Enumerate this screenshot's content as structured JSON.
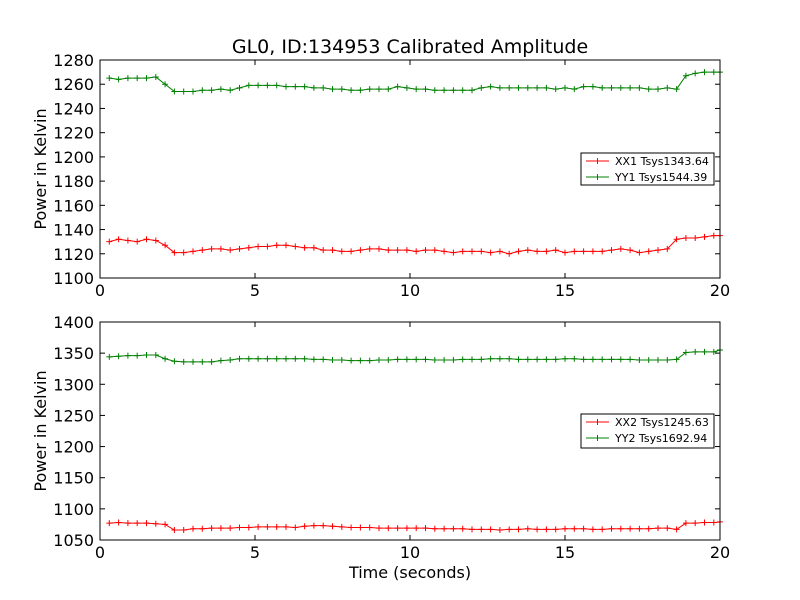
{
  "chart_data": [
    {
      "type": "line",
      "title": "GL0, ID:134953 Calibrated Amplitude",
      "xlabel": "",
      "ylabel": "Power in Kelvin",
      "xlim": [
        0,
        20
      ],
      "ylim": [
        1100,
        1280
      ],
      "x_ticks": [
        "0",
        "5",
        "10",
        "15",
        "20"
      ],
      "y_ticks": [
        "1100",
        "1120",
        "1140",
        "1160",
        "1180",
        "1200",
        "1220",
        "1240",
        "1260",
        "1280"
      ],
      "legend_position": "center-right",
      "grid": false,
      "series": [
        {
          "name": "XX1 Tsys1343.64",
          "color": "#ff0000",
          "x": [
            0.3,
            0.6,
            0.9,
            1.2,
            1.5,
            1.8,
            2.1,
            2.4,
            2.7,
            3.0,
            3.3,
            3.6,
            3.9,
            4.2,
            4.5,
            4.8,
            5.1,
            5.4,
            5.7,
            6.0,
            6.3,
            6.6,
            6.9,
            7.2,
            7.5,
            7.8,
            8.1,
            8.4,
            8.7,
            9.0,
            9.3,
            9.6,
            9.9,
            10.2,
            10.5,
            10.8,
            11.1,
            11.4,
            11.7,
            12.0,
            12.3,
            12.6,
            12.9,
            13.2,
            13.5,
            13.8,
            14.1,
            14.4,
            14.7,
            15.0,
            15.3,
            15.6,
            15.9,
            16.2,
            16.5,
            16.8,
            17.1,
            17.4,
            17.7,
            18.0,
            18.3,
            18.6,
            18.9,
            19.2,
            19.5,
            19.8
          ],
          "values": [
            1130,
            1132,
            1131,
            1130,
            1132,
            1131,
            1127,
            1121,
            1121,
            1122,
            1123,
            1124,
            1124,
            1123,
            1124,
            1125,
            1126,
            1126,
            1127,
            1127,
            1126,
            1125,
            1125,
            1123,
            1123,
            1122,
            1122,
            1123,
            1124,
            1124,
            1123,
            1123,
            1123,
            1122,
            1123,
            1123,
            1122,
            1121,
            1122,
            1122,
            1122,
            1121,
            1122,
            1120,
            1122,
            1123,
            1122,
            1122,
            1123,
            1121,
            1122,
            1122,
            1122,
            1122,
            1123,
            1124,
            1123,
            1121,
            1122,
            1123,
            1124,
            1132,
            1133,
            1133,
            1134,
            1135
          ],
          "final_point": [
            20.0,
            1135
          ]
        },
        {
          "name": "YY1 Tsys1544.39",
          "color": "#008000",
          "x": [
            0.3,
            0.6,
            0.9,
            1.2,
            1.5,
            1.8,
            2.1,
            2.4,
            2.7,
            3.0,
            3.3,
            3.6,
            3.9,
            4.2,
            4.5,
            4.8,
            5.1,
            5.4,
            5.7,
            6.0,
            6.3,
            6.6,
            6.9,
            7.2,
            7.5,
            7.8,
            8.1,
            8.4,
            8.7,
            9.0,
            9.3,
            9.6,
            9.9,
            10.2,
            10.5,
            10.8,
            11.1,
            11.4,
            11.7,
            12.0,
            12.3,
            12.6,
            12.9,
            13.2,
            13.5,
            13.8,
            14.1,
            14.4,
            14.7,
            15.0,
            15.3,
            15.6,
            15.9,
            16.2,
            16.5,
            16.8,
            17.1,
            17.4,
            17.7,
            18.0,
            18.3,
            18.6,
            18.9,
            19.2,
            19.5,
            19.8
          ],
          "values": [
            1265,
            1264,
            1265,
            1265,
            1265,
            1266,
            1260,
            1254,
            1254,
            1254,
            1255,
            1255,
            1256,
            1255,
            1257,
            1259,
            1259,
            1259,
            1259,
            1258,
            1258,
            1258,
            1257,
            1257,
            1256,
            1256,
            1255,
            1255,
            1256,
            1256,
            1256,
            1258,
            1257,
            1256,
            1256,
            1255,
            1255,
            1255,
            1255,
            1255,
            1257,
            1258,
            1257,
            1257,
            1257,
            1257,
            1257,
            1257,
            1256,
            1257,
            1256,
            1258,
            1258,
            1257,
            1257,
            1257,
            1257,
            1257,
            1256,
            1256,
            1257,
            1256,
            1267,
            1269,
            1270,
            1270
          ],
          "final_point": [
            20.0,
            1270
          ]
        }
      ]
    },
    {
      "type": "line",
      "title": "",
      "xlabel": "Time (seconds)",
      "ylabel": "Power in Kelvin",
      "xlim": [
        0,
        20
      ],
      "ylim": [
        1050,
        1400
      ],
      "x_ticks": [
        "0",
        "5",
        "10",
        "15",
        "20"
      ],
      "y_ticks": [
        "1050",
        "1100",
        "1150",
        "1200",
        "1250",
        "1300",
        "1350",
        "1400"
      ],
      "legend_position": "center-right",
      "grid": false,
      "series": [
        {
          "name": "XX2 Tsys1245.63",
          "color": "#ff0000",
          "x": [
            0.3,
            0.6,
            0.9,
            1.2,
            1.5,
            1.8,
            2.1,
            2.4,
            2.7,
            3.0,
            3.3,
            3.6,
            3.9,
            4.2,
            4.5,
            4.8,
            5.1,
            5.4,
            5.7,
            6.0,
            6.3,
            6.6,
            6.9,
            7.2,
            7.5,
            7.8,
            8.1,
            8.4,
            8.7,
            9.0,
            9.3,
            9.6,
            9.9,
            10.2,
            10.5,
            10.8,
            11.1,
            11.4,
            11.7,
            12.0,
            12.3,
            12.6,
            12.9,
            13.2,
            13.5,
            13.8,
            14.1,
            14.4,
            14.7,
            15.0,
            15.3,
            15.6,
            15.9,
            16.2,
            16.5,
            16.8,
            17.1,
            17.4,
            17.7,
            18.0,
            18.3,
            18.6,
            18.9,
            19.2,
            19.5,
            19.8
          ],
          "values": [
            1077,
            1078,
            1077,
            1077,
            1077,
            1076,
            1075,
            1066,
            1066,
            1068,
            1068,
            1069,
            1069,
            1069,
            1070,
            1070,
            1071,
            1071,
            1071,
            1071,
            1070,
            1072,
            1073,
            1073,
            1072,
            1071,
            1070,
            1070,
            1070,
            1069,
            1069,
            1069,
            1069,
            1069,
            1069,
            1068,
            1068,
            1068,
            1068,
            1067,
            1067,
            1067,
            1066,
            1067,
            1067,
            1068,
            1067,
            1067,
            1067,
            1068,
            1068,
            1068,
            1067,
            1067,
            1068,
            1068,
            1068,
            1068,
            1068,
            1069,
            1069,
            1067,
            1077,
            1077,
            1078,
            1078
          ],
          "final_point": [
            20.0,
            1079
          ]
        },
        {
          "name": "YY2 Tsys1692.94",
          "color": "#008000",
          "x": [
            0.3,
            0.6,
            0.9,
            1.2,
            1.5,
            1.8,
            2.1,
            2.4,
            2.7,
            3.0,
            3.3,
            3.6,
            3.9,
            4.2,
            4.5,
            4.8,
            5.1,
            5.4,
            5.7,
            6.0,
            6.3,
            6.6,
            6.9,
            7.2,
            7.5,
            7.8,
            8.1,
            8.4,
            8.7,
            9.0,
            9.3,
            9.6,
            9.9,
            10.2,
            10.5,
            10.8,
            11.1,
            11.4,
            11.7,
            12.0,
            12.3,
            12.6,
            12.9,
            13.2,
            13.5,
            13.8,
            14.1,
            14.4,
            14.7,
            15.0,
            15.3,
            15.6,
            15.9,
            16.2,
            16.5,
            16.8,
            17.1,
            17.4,
            17.7,
            18.0,
            18.3,
            18.6,
            18.9,
            19.2,
            19.5,
            19.8
          ],
          "values": [
            1344,
            1345,
            1346,
            1346,
            1347,
            1347,
            1341,
            1337,
            1336,
            1336,
            1336,
            1336,
            1338,
            1339,
            1341,
            1341,
            1341,
            1341,
            1341,
            1341,
            1341,
            1341,
            1340,
            1340,
            1339,
            1339,
            1338,
            1338,
            1338,
            1339,
            1339,
            1340,
            1340,
            1340,
            1340,
            1339,
            1339,
            1339,
            1340,
            1340,
            1340,
            1341,
            1341,
            1341,
            1340,
            1340,
            1340,
            1340,
            1340,
            1341,
            1341,
            1340,
            1340,
            1340,
            1340,
            1340,
            1340,
            1339,
            1339,
            1339,
            1339,
            1340,
            1351,
            1352,
            1352,
            1352
          ],
          "final_point": [
            20.0,
            1355
          ]
        }
      ]
    }
  ]
}
